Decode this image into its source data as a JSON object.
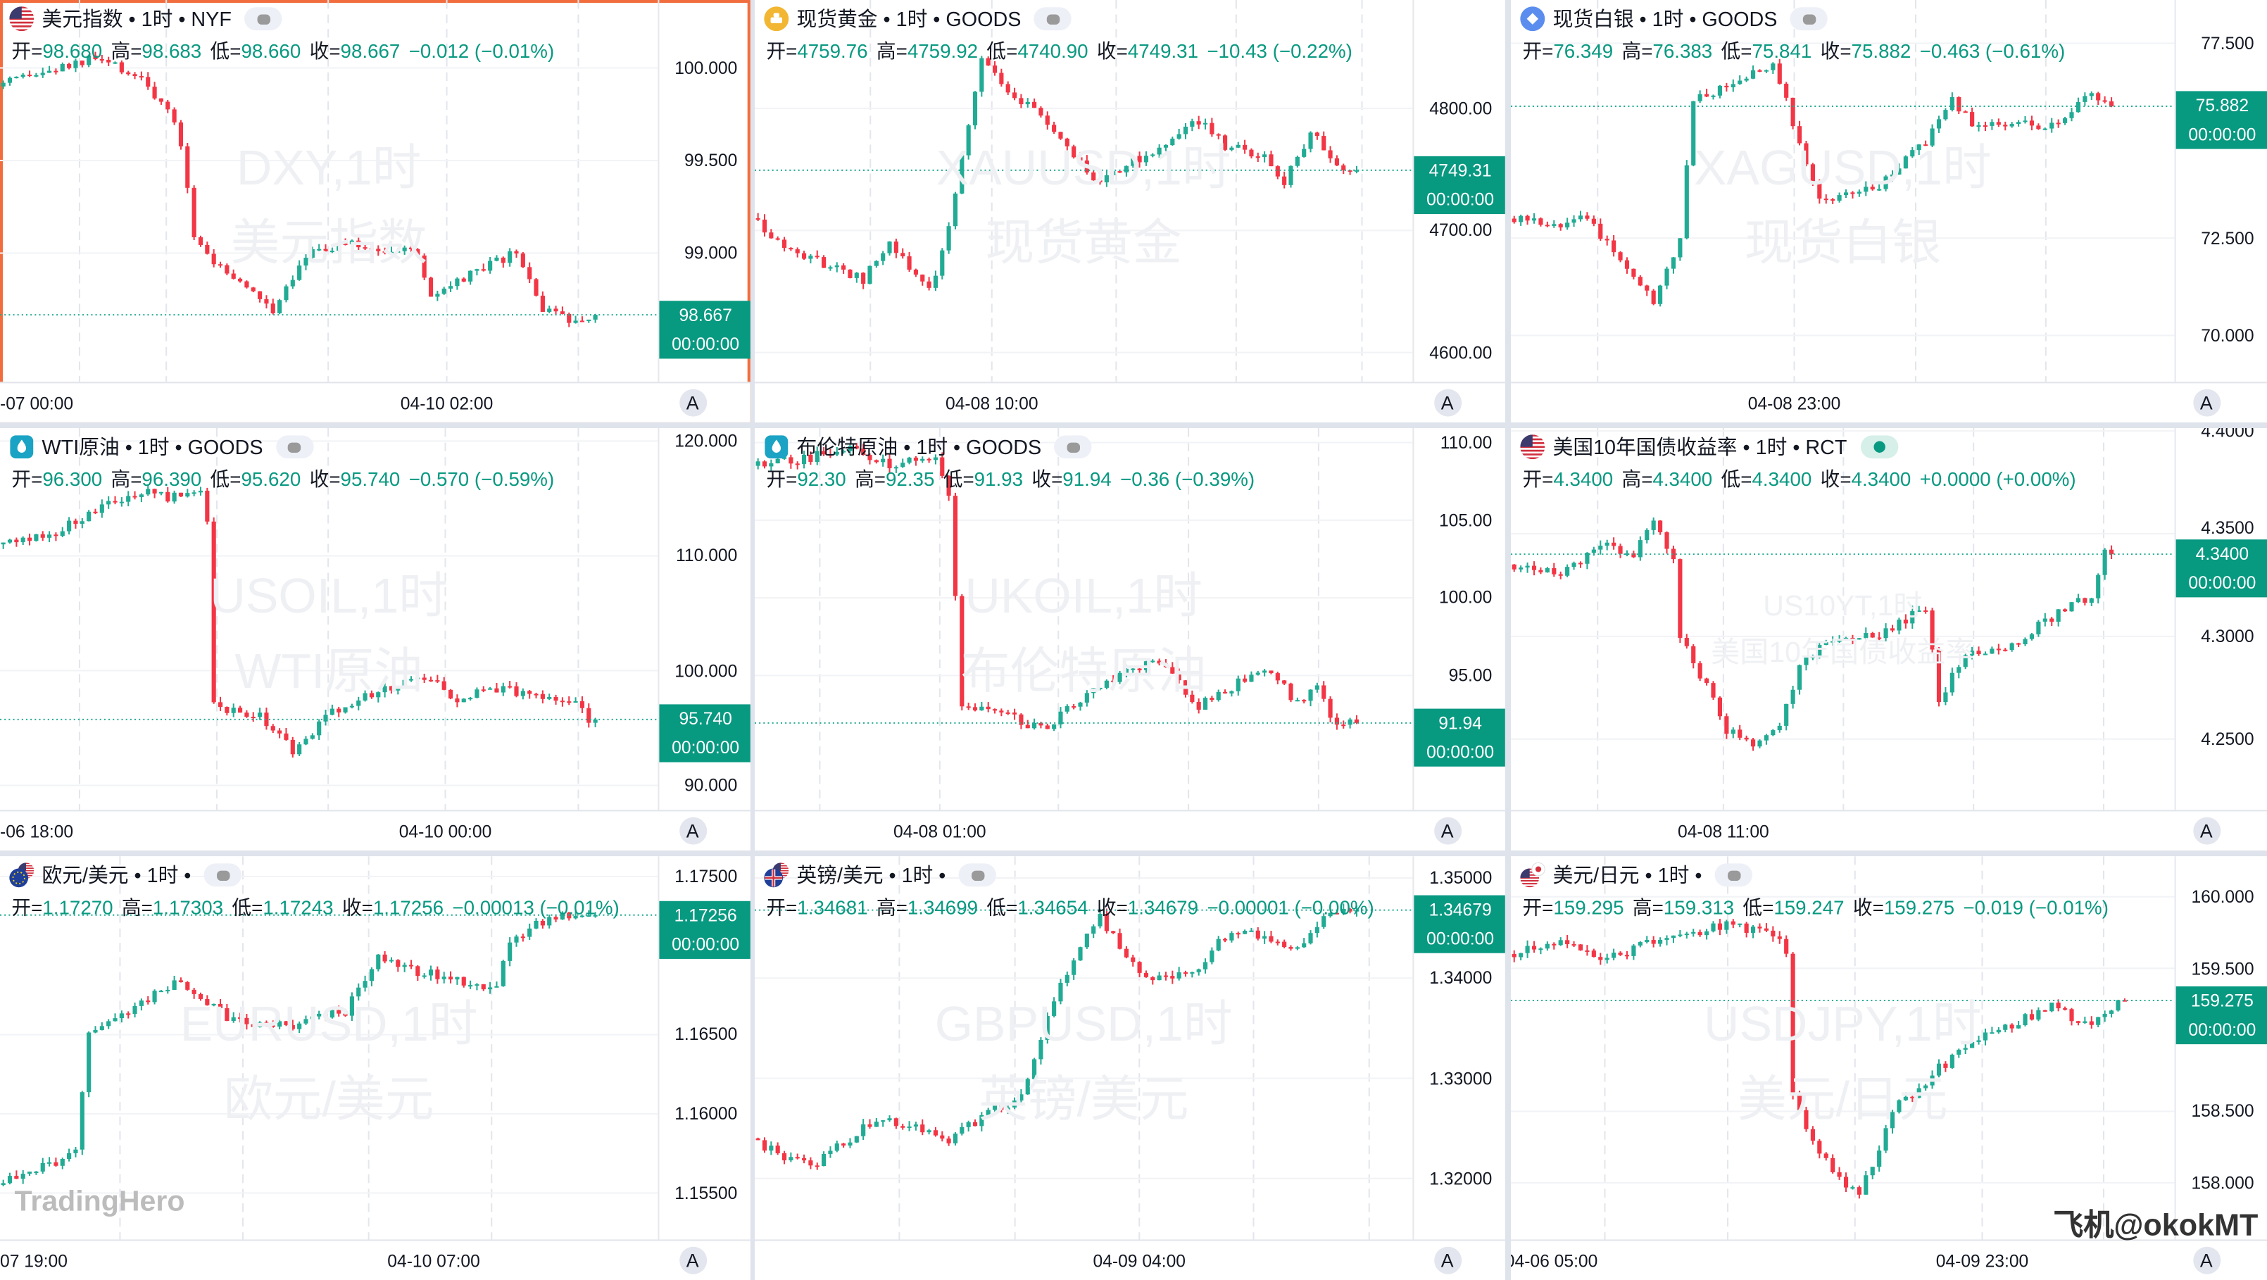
{
  "ohlc_labels": {
    "open": "开=",
    "high": "高=",
    "low": "低=",
    "close": "收="
  },
  "colors": {
    "up": "#22ab94",
    "down": "#f23645",
    "text_green": "#089981",
    "selected_border": "#f26d3d"
  },
  "panels": [
    {
      "id": "dxy",
      "title": "美元指数 • 1时 • NYF",
      "icon": "us-flag-icon",
      "badge": "grey",
      "selected": true,
      "ohlc": {
        "open": "98.680",
        "high": "98.683",
        "low": "98.660",
        "close": "98.667",
        "change": "−0.012 (−0.01%)"
      },
      "y_ticks": [
        {
          "label": "100.000",
          "value": 100.0
        },
        {
          "label": "99.500",
          "value": 99.5
        },
        {
          "label": "99.000",
          "value": 99.0
        }
      ],
      "ylim": [
        98.305,
        100.367
      ],
      "last_price": {
        "label": "98.667",
        "value": 98.667
      },
      "countdown": "00:00:00",
      "time_labels": [
        "-07 00:00",
        "04-10 02:00"
      ],
      "watermark": [
        "DXY,1时",
        "美元指数"
      ],
      "auto_button": "A",
      "series": {
        "bars": 100,
        "anchors": [
          [
            0,
            99.9
          ],
          [
            15,
            100.05
          ],
          [
            22,
            99.95
          ],
          [
            27,
            99.7
          ],
          [
            28.5,
            99.5
          ],
          [
            30,
            99.1
          ],
          [
            33,
            98.95
          ],
          [
            42,
            98.7
          ],
          [
            47,
            99.0
          ],
          [
            53,
            99.05
          ],
          [
            64,
            99.0
          ],
          [
            66,
            98.75
          ],
          [
            72,
            98.88
          ],
          [
            79,
            99.0
          ],
          [
            83,
            98.7
          ],
          [
            87,
            98.63
          ],
          [
            90,
            98.667
          ]
        ]
      }
    },
    {
      "id": "xauusd",
      "title": "现货黄金 • 1时 • GOODS",
      "icon": "gold-coin-icon",
      "badge": "grey",
      "ohlc": {
        "open": "4759.76",
        "high": "4759.92",
        "low": "4740.90",
        "close": "4749.31",
        "change": "−10.43 (−0.22%)"
      },
      "y_ticks": [
        {
          "label": "4800.00",
          "value": 4800
        },
        {
          "label": "4700.00",
          "value": 4700
        },
        {
          "label": "4600.00",
          "value": 4600
        }
      ],
      "ylim": [
        4576,
        4888.8
      ],
      "last_price": {
        "label": "4749.31",
        "value": 4749.31
      },
      "countdown": "00:00:00",
      "time_labels": [
        "04-08 10:00"
      ],
      "watermark": [
        "XAUUSD,1时",
        "现货黄金"
      ],
      "auto_button": "A",
      "series": {
        "bars": 100,
        "anchors": [
          [
            0,
            4710
          ],
          [
            4,
            4690
          ],
          [
            12,
            4670
          ],
          [
            17,
            4660
          ],
          [
            21,
            4690
          ],
          [
            27,
            4650
          ],
          [
            30,
            4700
          ],
          [
            32,
            4760
          ],
          [
            35,
            4840
          ],
          [
            39,
            4810
          ],
          [
            43,
            4800
          ],
          [
            48,
            4770
          ],
          [
            52,
            4740
          ],
          [
            59,
            4760
          ],
          [
            63,
            4770
          ],
          [
            68,
            4790
          ],
          [
            72,
            4770
          ],
          [
            78,
            4760
          ],
          [
            81,
            4740
          ],
          [
            85,
            4780
          ],
          [
            88,
            4760
          ],
          [
            91,
            4749.31
          ]
        ]
      }
    },
    {
      "id": "xagusd",
      "title": "现货白银 • 1时 • GOODS",
      "icon": "silver-coin-icon",
      "badge": "grey",
      "ohlc": {
        "open": "76.349",
        "high": "76.383",
        "low": "75.841",
        "close": "75.882",
        "change": "−0.463 (−0.61%)"
      },
      "y_ticks": [
        {
          "label": "77.500",
          "value": 77.5
        },
        {
          "label": "72.500",
          "value": 72.5
        },
        {
          "label": "70.000",
          "value": 70.0
        }
      ],
      "ylim": [
        68.81,
        78.61
      ],
      "last_price": {
        "label": "75.882",
        "value": 75.882
      },
      "countdown": "00:00:00",
      "time_labels": [
        "04-08 23:00"
      ],
      "watermark": [
        "XAGUSD,1时",
        "现货白银"
      ],
      "auto_button": "A",
      "series": {
        "bars": 100,
        "anchors": [
          [
            0,
            73.0
          ],
          [
            7,
            72.8
          ],
          [
            12,
            73.0
          ],
          [
            19,
            71.5
          ],
          [
            22,
            70.8
          ],
          [
            26,
            72.5
          ],
          [
            28,
            76.0
          ],
          [
            34,
            76.5
          ],
          [
            40,
            77.0
          ],
          [
            43,
            75.5
          ],
          [
            47,
            73.5
          ],
          [
            56,
            73.8
          ],
          [
            63,
            75.0
          ],
          [
            67,
            76.0
          ],
          [
            71,
            75.3
          ],
          [
            78,
            75.5
          ],
          [
            80,
            75.2
          ],
          [
            85,
            75.8
          ],
          [
            88,
            76.2
          ],
          [
            90,
            75.882
          ]
        ]
      }
    },
    {
      "id": "usoil",
      "title": "WTI原油 • 1时 • GOODS",
      "icon": "oil-icon",
      "badge": "grey",
      "ohlc": {
        "open": "96.300",
        "high": "96.390",
        "low": "95.620",
        "close": "95.740",
        "change": "−0.570 (−0.59%)"
      },
      "y_ticks": [
        {
          "label": "120.000",
          "value": 120
        },
        {
          "label": "110.000",
          "value": 110
        },
        {
          "label": "100.000",
          "value": 100
        },
        {
          "label": "90.000",
          "value": 90
        }
      ],
      "ylim": [
        87.86,
        121.13
      ],
      "last_price": {
        "label": "95.740",
        "value": 95.74
      },
      "countdown": "00:00:00",
      "time_labels": [
        "-06 18:00",
        "04-10 00:00"
      ],
      "watermark": [
        "USOIL,1时",
        "WTI原油"
      ],
      "auto_button": "A",
      "series": {
        "bars": 100,
        "anchors": [
          [
            0,
            111
          ],
          [
            9,
            112
          ],
          [
            15,
            114
          ],
          [
            22,
            115.5
          ],
          [
            28,
            115
          ],
          [
            31,
            116
          ],
          [
            32.5,
            112
          ],
          [
            33,
            97
          ],
          [
            40,
            96
          ],
          [
            45,
            93
          ],
          [
            50,
            96
          ],
          [
            57,
            98
          ],
          [
            66,
            99.5
          ],
          [
            69,
            97.5
          ],
          [
            75,
            98.5
          ],
          [
            82,
            98
          ],
          [
            87,
            97.5
          ],
          [
            90,
            95.74
          ]
        ]
      }
    },
    {
      "id": "ukoil",
      "title": "布伦特原油 • 1时 • GOODS",
      "icon": "oil-icon",
      "badge": "grey",
      "ohlc": {
        "open": "92.30",
        "high": "92.35",
        "low": "91.93",
        "close": "91.94",
        "change": "−0.36 (−0.39%)"
      },
      "y_ticks": [
        {
          "label": "110.00",
          "value": 110
        },
        {
          "label": "105.00",
          "value": 105
        },
        {
          "label": "100.00",
          "value": 100
        },
        {
          "label": "95.00",
          "value": 95
        }
      ],
      "ylim": [
        86.34,
        110.93
      ],
      "last_price": {
        "label": "91.94",
        "value": 91.94
      },
      "countdown": "00:00:00",
      "time_labels": [
        "04-08 01:00"
      ],
      "watermark": [
        "UKOIL,1时",
        "布伦特原油"
      ],
      "auto_button": "A",
      "series": {
        "bars": 100,
        "anchors": [
          [
            0,
            108.5
          ],
          [
            8,
            109
          ],
          [
            15,
            109.5
          ],
          [
            21,
            108.5
          ],
          [
            28,
            109
          ],
          [
            30,
            106.5
          ],
          [
            32,
            93.2
          ],
          [
            39,
            92.5
          ],
          [
            44,
            91.5
          ],
          [
            52,
            94
          ],
          [
            61,
            96
          ],
          [
            64,
            95
          ],
          [
            68,
            93
          ],
          [
            74,
            94.5
          ],
          [
            79,
            95.2
          ],
          [
            83,
            93.2
          ],
          [
            86,
            94.5
          ],
          [
            88,
            92
          ],
          [
            91,
            91.94
          ]
        ]
      }
    },
    {
      "id": "us10yt",
      "title": "美国10年国债收益率 • 1时 • RCT",
      "icon": "us-flag-icon",
      "badge": "green",
      "ohlc": {
        "open": "4.3400",
        "high": "4.3400",
        "low": "4.3400",
        "close": "4.3400",
        "change": "+0.0000 (+0.00%)"
      },
      "y_ticks": [
        {
          "label": "4.4000",
          "value": 4.4
        },
        {
          "label": "4.3500",
          "value": 4.35
        },
        {
          "label": "4.3000",
          "value": 4.3
        },
        {
          "label": "4.2500",
          "value": 4.25
        }
      ],
      "ylim": [
        4.2155,
        4.4014
      ],
      "last_price": {
        "label": "4.3400",
        "value": 4.34
      },
      "countdown": "00:00:00",
      "time_labels": [
        "04-08 11:00"
      ],
      "watermark": [
        "US10YT,1时",
        "美国10年国债收益率"
      ],
      "auto_button": "A",
      "series": {
        "bars": 100,
        "anchors": [
          [
            0,
            4.335
          ],
          [
            8,
            4.33
          ],
          [
            14,
            4.345
          ],
          [
            19,
            4.34
          ],
          [
            22,
            4.355
          ],
          [
            25,
            4.34
          ],
          [
            26,
            4.3
          ],
          [
            30,
            4.275
          ],
          [
            33,
            4.255
          ],
          [
            37,
            4.245
          ],
          [
            41,
            4.255
          ],
          [
            44,
            4.285
          ],
          [
            49,
            4.3
          ],
          [
            56,
            4.3
          ],
          [
            63,
            4.315
          ],
          [
            65,
            4.27
          ],
          [
            69,
            4.29
          ],
          [
            76,
            4.295
          ],
          [
            80,
            4.305
          ],
          [
            85,
            4.315
          ],
          [
            88,
            4.32
          ],
          [
            90,
            4.34
          ]
        ]
      }
    },
    {
      "id": "eurusd",
      "title": "欧元/美元 • 1时 •",
      "icon": "eu-us-flag-icon",
      "badge": "grey",
      "ohlc": {
        "open": "1.17270",
        "high": "1.17303",
        "low": "1.17243",
        "close": "1.17256",
        "change": "−0.00013 (−0.01%)"
      },
      "y_ticks": [
        {
          "label": "1.17500",
          "value": 1.175
        },
        {
          "label": "1.16500",
          "value": 1.165
        },
        {
          "label": "1.16000",
          "value": 1.16
        },
        {
          "label": "1.15500",
          "value": 1.155
        }
      ],
      "ylim": [
        1.15206,
        1.17628
      ],
      "last_price": {
        "label": "1.17256",
        "value": 1.17256
      },
      "countdown": "00:00:00",
      "time_labels": [
        "07 19:00",
        "04-10 07:00"
      ],
      "watermark": [
        "EURUSD,1时",
        "欧元/美元"
      ],
      "auto_button": "A",
      "series": {
        "bars": 100,
        "anchors": [
          [
            0,
            1.1555
          ],
          [
            9,
            1.157
          ],
          [
            12,
            1.158
          ],
          [
            14,
            1.165
          ],
          [
            22,
            1.167
          ],
          [
            28,
            1.1685
          ],
          [
            35,
            1.166
          ],
          [
            44,
            1.1655
          ],
          [
            53,
            1.1665
          ],
          [
            58,
            1.17
          ],
          [
            64,
            1.169
          ],
          [
            70,
            1.1685
          ],
          [
            76,
            1.168
          ],
          [
            78,
            1.171
          ],
          [
            82,
            1.172
          ],
          [
            88,
            1.1727
          ],
          [
            90,
            1.17256
          ]
        ]
      }
    },
    {
      "id": "gbpusd",
      "title": "英镑/美元 • 1时 •",
      "icon": "uk-us-flag-icon",
      "badge": "grey",
      "ohlc": {
        "open": "1.34681",
        "high": "1.34699",
        "low": "1.34654",
        "close": "1.34679",
        "change": "−0.00001 (−0.00%)"
      },
      "y_ticks": [
        {
          "label": "1.35000",
          "value": 1.35
        },
        {
          "label": "1.34000",
          "value": 1.34
        },
        {
          "label": "1.33000",
          "value": 1.33
        },
        {
          "label": "1.32000",
          "value": 1.32
        }
      ],
      "ylim": [
        1.31391,
        1.35217
      ],
      "last_price": {
        "label": "1.34679",
        "value": 1.34679
      },
      "countdown": "00:00:00",
      "time_labels": [
        "04-09 04:00"
      ],
      "watermark": [
        "GBPUSD,1时",
        "英镑/美元"
      ],
      "auto_button": "A",
      "series": {
        "bars": 100,
        "anchors": [
          [
            0,
            1.324
          ],
          [
            5,
            1.322
          ],
          [
            9,
            1.3212
          ],
          [
            15,
            1.324
          ],
          [
            19,
            1.326
          ],
          [
            26,
            1.325
          ],
          [
            30,
            1.324
          ],
          [
            37,
            1.327
          ],
          [
            41,
            1.328
          ],
          [
            46,
            1.338
          ],
          [
            51,
            1.344
          ],
          [
            53,
            1.346
          ],
          [
            57,
            1.342
          ],
          [
            61,
            1.34
          ],
          [
            68,
            1.341
          ],
          [
            73,
            1.345
          ],
          [
            79,
            1.344
          ],
          [
            84,
            1.343
          ],
          [
            87,
            1.346
          ],
          [
            91,
            1.34679
          ]
        ]
      }
    },
    {
      "id": "usdjpy",
      "title": "美元/日元 • 1时 •",
      "icon": "us-jp-flag-icon",
      "badge": "grey",
      "ohlc": {
        "open": "159.295",
        "high": "159.313",
        "low": "159.247",
        "close": "159.275",
        "change": "−0.019 (−0.01%)"
      },
      "y_ticks": [
        {
          "label": "160.000",
          "value": 160
        },
        {
          "label": "159.500",
          "value": 159.5
        },
        {
          "label": "158.500",
          "value": 158.5
        },
        {
          "label": "158.000",
          "value": 158
        }
      ],
      "ylim": [
        157.604,
        160.284
      ],
      "last_price": {
        "label": "159.275",
        "value": 159.275
      },
      "countdown": "00:00:00",
      "time_labels": [
        "04-06 05:00",
        "04-09 23:00"
      ],
      "watermark": [
        "USDJPY,1时",
        "美元/日元"
      ],
      "auto_button": "A",
      "series": {
        "bars": 100,
        "anchors": [
          [
            0,
            159.6
          ],
          [
            8,
            159.7
          ],
          [
            14,
            159.55
          ],
          [
            23,
            159.7
          ],
          [
            32,
            159.8
          ],
          [
            40,
            159.75
          ],
          [
            42,
            159.6
          ],
          [
            43,
            158.6
          ],
          [
            47,
            158.2
          ],
          [
            53,
            157.9
          ],
          [
            58,
            158.5
          ],
          [
            65,
            158.8
          ],
          [
            71,
            159.0
          ],
          [
            76,
            159.1
          ],
          [
            82,
            159.25
          ],
          [
            87,
            159.1
          ],
          [
            92,
            159.275
          ]
        ]
      }
    }
  ],
  "watermarks": {
    "brand": "TradingHero",
    "credit": "飞机@okokMT"
  }
}
